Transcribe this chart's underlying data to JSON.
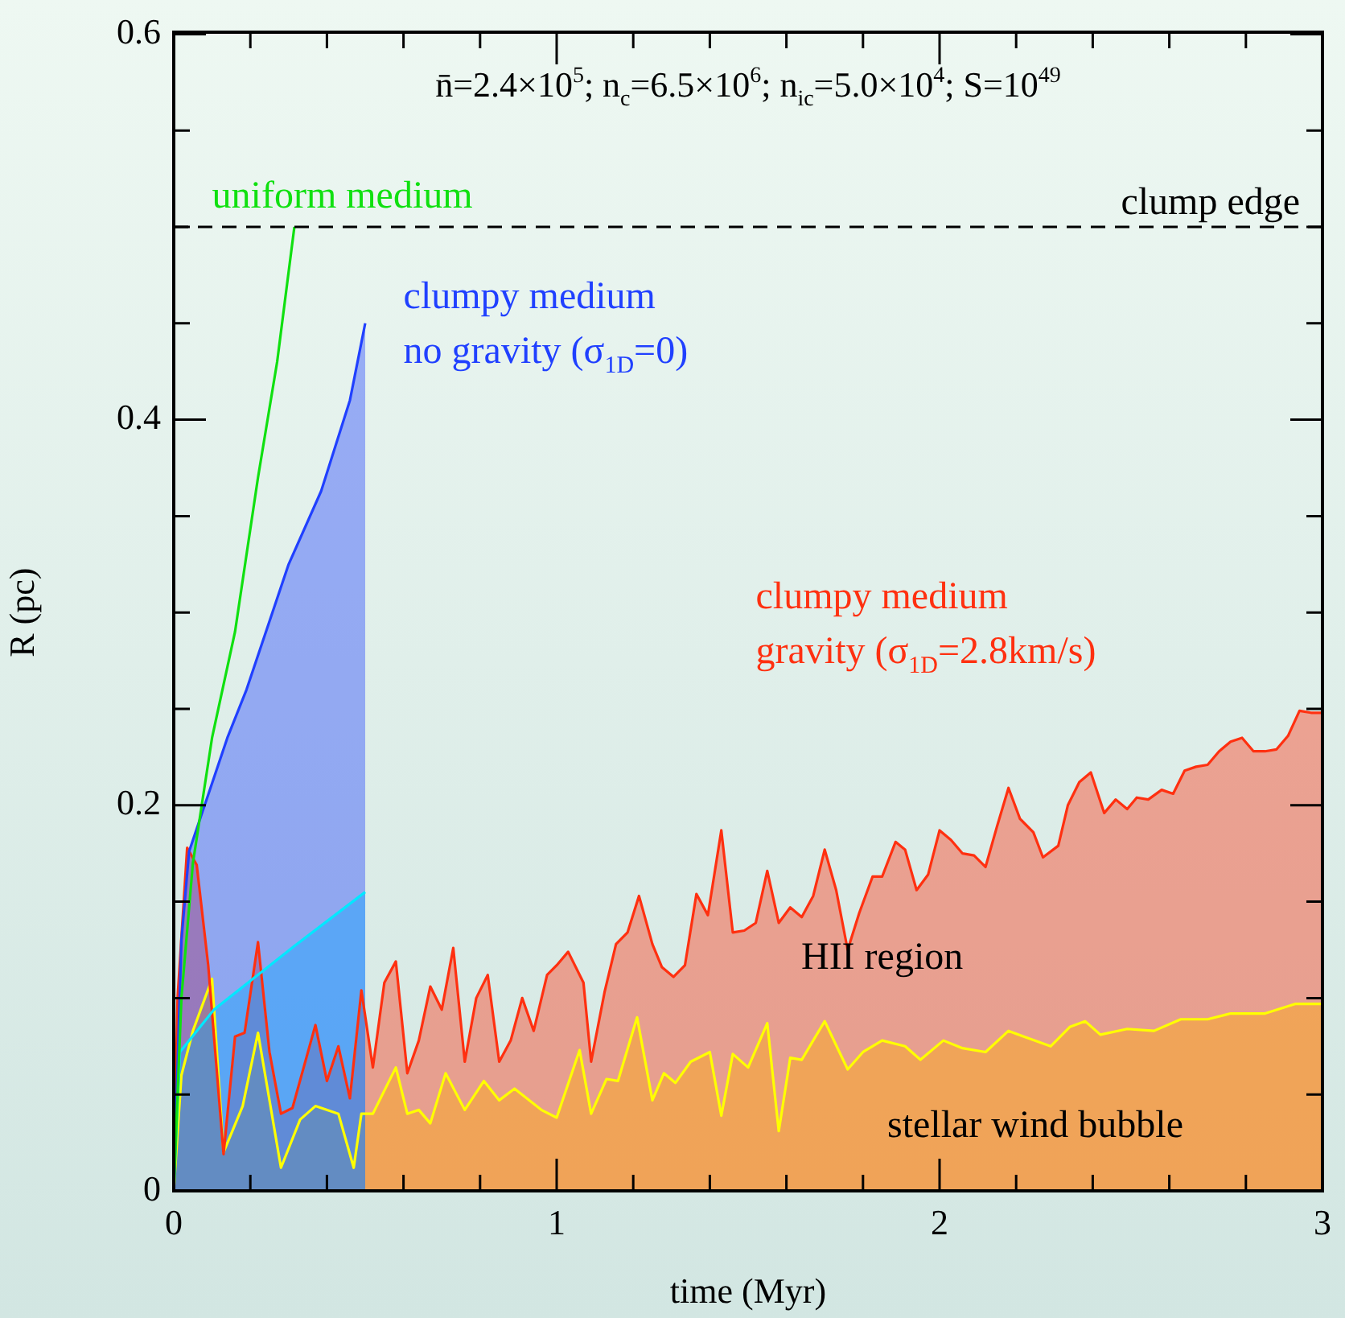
{
  "chart_data": {
    "type": "line",
    "title": "n̄=2.4×10$^{5}$; n$_{c}$=6.5×10$^{6}$; n$_{ic}$=5.0×10$^{4}$; S=10$^{49}$",
    "xlabel": "time (Myr)",
    "ylabel": "R (pc)",
    "xlim": [
      0,
      3
    ],
    "ylim": [
      0,
      0.6
    ],
    "xticks": [
      0,
      {
        "value": 0.2,
        "label": null
      },
      {
        "value": 0.4,
        "label": null
      },
      {
        "value": 0.6,
        "label": null
      },
      {
        "value": 0.8,
        "label": null
      },
      1,
      {
        "value": 1.2,
        "label": null
      },
      {
        "value": 1.4,
        "label": null
      },
      {
        "value": 1.6,
        "label": null
      },
      {
        "value": 1.8,
        "label": null
      },
      2,
      {
        "value": 2.2,
        "label": null
      },
      {
        "value": 2.4,
        "label": null
      },
      {
        "value": 2.6,
        "label": null
      },
      {
        "value": 2.8,
        "label": null
      },
      3
    ],
    "yticks": [
      0,
      {
        "value": 0.05,
        "label": null
      },
      {
        "value": 0.1,
        "label": null
      },
      {
        "value": 0.15,
        "label": null
      },
      0.2,
      {
        "value": 0.25,
        "label": null
      },
      {
        "value": 0.3,
        "label": null
      },
      {
        "value": 0.35,
        "label": null
      },
      0.4,
      {
        "value": 0.45,
        "label": null
      },
      {
        "value": 0.5,
        "label": null
      },
      {
        "value": 0.55,
        "label": null
      },
      0.6
    ],
    "grid": false,
    "legend": false,
    "ref_lines": [
      {
        "axis": "y",
        "value": 0.5,
        "label": "clump edge",
        "color": "#000000",
        "line_style": "dashed"
      }
    ],
    "annotations": [
      "HII region",
      "stellar wind bubble"
    ],
    "series": [
      {
        "name": "uniform medium",
        "color": "#10e010",
        "x": [
          0,
          0.02,
          0.05,
          0.1,
          0.16,
          0.22,
          0.27,
          0.315
        ],
        "values": [
          0,
          0.1,
          0.17,
          0.235,
          0.29,
          0.37,
          0.43,
          0.5
        ]
      },
      {
        "name": "clumpy medium\nno gravity (σ$_{1D}$=0)",
        "type": "area",
        "color": "#2040ff",
        "x": [
          0,
          0.02,
          0.04,
          0.14,
          0.19,
          0.3,
          0.385,
          0.46,
          0.5
        ],
        "values": [
          0,
          0.13,
          0.176,
          0.235,
          0.26,
          0.325,
          0.363,
          0.41,
          0.45
        ]
      },
      {
        "type": "area",
        "color": "#00e8ff",
        "x": [
          0,
          0.016,
          0.105,
          0.315,
          0.5
        ],
        "values": [
          0,
          0.072,
          0.094,
          0.127,
          0.155
        ]
      },
      {
        "name": "clumpy medium\ngravity (σ$_{1D}$=2.8km/s)",
        "type": "area",
        "color": "#ff3010",
        "x": [
          0,
          0.01,
          0.035,
          0.06,
          0.09,
          0.13,
          0.16,
          0.185,
          0.22,
          0.25,
          0.28,
          0.31,
          0.37,
          0.4,
          0.43,
          0.46,
          0.49,
          0.52,
          0.55,
          0.58,
          0.61,
          0.64,
          0.67,
          0.7,
          0.73,
          0.76,
          0.79,
          0.82,
          0.85,
          0.88,
          0.91,
          0.94,
          0.975,
          1.0,
          1.03,
          1.07,
          1.09,
          1.125,
          1.155,
          1.185,
          1.215,
          1.25,
          1.275,
          1.305,
          1.335,
          1.365,
          1.395,
          1.43,
          1.46,
          1.49,
          1.52,
          1.55,
          1.58,
          1.61,
          1.64,
          1.67,
          1.7,
          1.73,
          1.76,
          1.79,
          1.825,
          1.85,
          1.885,
          1.91,
          1.94,
          1.97,
          2.0,
          2.03,
          2.06,
          2.09,
          2.12,
          2.15,
          2.18,
          2.21,
          2.245,
          2.27,
          2.31,
          2.335,
          2.365,
          2.395,
          2.43,
          2.46,
          2.49,
          2.515,
          2.545,
          2.58,
          2.61,
          2.64,
          2.67,
          2.7,
          2.73,
          2.76,
          2.79,
          2.82,
          2.85,
          2.88,
          2.91,
          2.94,
          2.97,
          3.0
        ],
        "values": [
          0,
          0.1,
          0.178,
          0.169,
          0.117,
          0.019,
          0.08,
          0.082,
          0.129,
          0.072,
          0.04,
          0.043,
          0.086,
          0.057,
          0.075,
          0.048,
          0.104,
          0.064,
          0.108,
          0.119,
          0.061,
          0.078,
          0.106,
          0.094,
          0.126,
          0.067,
          0.1,
          0.112,
          0.067,
          0.078,
          0.1,
          0.083,
          0.112,
          0.117,
          0.124,
          0.108,
          0.067,
          0.103,
          0.128,
          0.134,
          0.153,
          0.128,
          0.116,
          0.111,
          0.117,
          0.154,
          0.143,
          0.187,
          0.134,
          0.135,
          0.139,
          0.166,
          0.139,
          0.147,
          0.142,
          0.153,
          0.177,
          0.156,
          0.125,
          0.144,
          0.163,
          0.163,
          0.181,
          0.177,
          0.156,
          0.164,
          0.187,
          0.182,
          0.175,
          0.174,
          0.168,
          0.189,
          0.209,
          0.193,
          0.186,
          0.173,
          0.179,
          0.2,
          0.212,
          0.217,
          0.196,
          0.203,
          0.198,
          0.204,
          0.203,
          0.208,
          0.206,
          0.218,
          0.22,
          0.221,
          0.228,
          0.233,
          0.235,
          0.228,
          0.228,
          0.229,
          0.236,
          0.249,
          0.248,
          0.248
        ]
      },
      {
        "type": "area",
        "color": "#ffff00",
        "x": [
          0,
          0.02,
          0.05,
          0.1,
          0.13,
          0.18,
          0.22,
          0.28,
          0.33,
          0.37,
          0.43,
          0.47,
          0.49,
          0.52,
          0.58,
          0.61,
          0.64,
          0.67,
          0.71,
          0.76,
          0.81,
          0.85,
          0.89,
          0.96,
          1.0,
          1.06,
          1.09,
          1.13,
          1.16,
          1.21,
          1.25,
          1.28,
          1.31,
          1.35,
          1.4,
          1.43,
          1.46,
          1.5,
          1.55,
          1.58,
          1.61,
          1.64,
          1.7,
          1.76,
          1.8,
          1.85,
          1.91,
          1.95,
          2.01,
          2.06,
          2.12,
          2.18,
          2.22,
          2.29,
          2.34,
          2.38,
          2.42,
          2.49,
          2.56,
          2.63,
          2.7,
          2.76,
          2.85,
          2.93,
          3.0
        ],
        "values": [
          0,
          0.06,
          0.083,
          0.11,
          0.02,
          0.044,
          0.082,
          0.012,
          0.037,
          0.044,
          0.04,
          0.012,
          0.04,
          0.04,
          0.064,
          0.04,
          0.042,
          0.035,
          0.061,
          0.042,
          0.057,
          0.047,
          0.053,
          0.042,
          0.038,
          0.073,
          0.04,
          0.058,
          0.057,
          0.09,
          0.047,
          0.061,
          0.056,
          0.067,
          0.072,
          0.039,
          0.071,
          0.064,
          0.087,
          0.031,
          0.069,
          0.068,
          0.088,
          0.063,
          0.072,
          0.078,
          0.075,
          0.068,
          0.078,
          0.074,
          0.072,
          0.083,
          0.08,
          0.075,
          0.085,
          0.088,
          0.081,
          0.084,
          0.083,
          0.089,
          0.089,
          0.092,
          0.092,
          0.097,
          0.097
        ]
      }
    ]
  }
}
